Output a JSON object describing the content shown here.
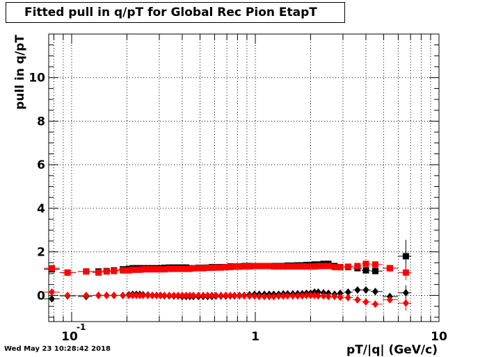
{
  "timestamp": "Wed May 23 10:28:42 2018",
  "chart_data": {
    "type": "scatter",
    "title": "Fitted pull in q/pT for Global Rec Pion EtapT",
    "xlabel": "pT/|q| (GeV/c)",
    "ylabel": "pull in q/pT",
    "xscale": "log",
    "xlim": [
      0.075,
      10
    ],
    "ylim": [
      -1.2,
      12
    ],
    "grid": true,
    "x_ticks": [
      {
        "value": 0.1,
        "label": "10",
        "exponent": "-1"
      },
      {
        "value": 1,
        "label": "1"
      },
      {
        "value": 10,
        "label": "10"
      }
    ],
    "y_ticks": [
      {
        "value": 0,
        "label": "0"
      },
      {
        "value": 2,
        "label": "2"
      },
      {
        "value": 4,
        "label": "4"
      },
      {
        "value": 6,
        "label": "6"
      },
      {
        "value": 8,
        "label": "8"
      },
      {
        "value": 10,
        "label": "10"
      }
    ],
    "x": [
      0.078,
      0.095,
      0.12,
      0.14,
      0.155,
      0.17,
      0.19,
      0.205,
      0.215,
      0.225,
      0.235,
      0.245,
      0.26,
      0.275,
      0.29,
      0.305,
      0.32,
      0.34,
      0.36,
      0.38,
      0.4,
      0.42,
      0.44,
      0.46,
      0.49,
      0.52,
      0.55,
      0.58,
      0.61,
      0.65,
      0.69,
      0.73,
      0.77,
      0.82,
      0.87,
      0.93,
      0.99,
      1.05,
      1.12,
      1.19,
      1.26,
      1.34,
      1.42,
      1.5,
      1.6,
      1.7,
      1.8,
      1.9,
      2.0,
      2.1,
      2.2,
      2.35,
      2.5,
      2.7,
      2.9,
      3.2,
      3.6,
      4.0,
      4.5,
      5.4,
      6.6
    ],
    "series": [
      {
        "name": "",
        "marker": "square",
        "color": "#000000",
        "values": [
          1.2,
          1.05,
          1.1,
          1.1,
          1.12,
          1.15,
          1.2,
          1.22,
          1.25,
          1.25,
          1.25,
          1.25,
          1.25,
          1.25,
          1.25,
          1.25,
          1.27,
          1.28,
          1.28,
          1.28,
          1.28,
          1.28,
          1.25,
          1.25,
          1.27,
          1.27,
          1.28,
          1.3,
          1.3,
          1.3,
          1.3,
          1.33,
          1.33,
          1.33,
          1.35,
          1.35,
          1.35,
          1.35,
          1.35,
          1.35,
          1.35,
          1.35,
          1.35,
          1.37,
          1.37,
          1.38,
          1.38,
          1.4,
          1.4,
          1.42,
          1.42,
          1.45,
          1.45,
          1.35,
          1.3,
          1.3,
          1.25,
          1.15,
          1.12,
          1.25,
          1.8
        ]
      },
      {
        "name": "",
        "marker": "square",
        "color": "#ff0000",
        "values": [
          1.25,
          1.05,
          1.1,
          1.05,
          1.1,
          1.12,
          1.15,
          1.15,
          1.18,
          1.18,
          1.18,
          1.2,
          1.2,
          1.2,
          1.2,
          1.2,
          1.2,
          1.22,
          1.22,
          1.22,
          1.22,
          1.22,
          1.22,
          1.25,
          1.25,
          1.25,
          1.27,
          1.27,
          1.28,
          1.28,
          1.3,
          1.3,
          1.32,
          1.32,
          1.33,
          1.33,
          1.35,
          1.35,
          1.35,
          1.35,
          1.33,
          1.33,
          1.33,
          1.33,
          1.33,
          1.33,
          1.33,
          1.33,
          1.33,
          1.33,
          1.35,
          1.35,
          1.35,
          1.3,
          1.3,
          1.32,
          1.35,
          1.45,
          1.42,
          1.25,
          1.05
        ]
      },
      {
        "name": "",
        "marker": "diamond",
        "color": "#000000",
        "values": [
          -0.15,
          -0.02,
          -0.05,
          0.0,
          0.0,
          0.0,
          0.0,
          0.03,
          0.05,
          0.05,
          0.05,
          0.03,
          0.02,
          0.0,
          0.0,
          0.0,
          -0.02,
          -0.02,
          -0.03,
          -0.03,
          -0.05,
          -0.05,
          -0.05,
          -0.05,
          -0.05,
          -0.05,
          -0.05,
          -0.05,
          -0.03,
          -0.03,
          -0.03,
          -0.02,
          -0.02,
          0.0,
          0.0,
          0.03,
          0.05,
          0.05,
          0.05,
          0.05,
          0.05,
          0.05,
          0.07,
          0.07,
          0.07,
          0.08,
          0.08,
          0.1,
          0.1,
          0.15,
          0.15,
          0.12,
          0.1,
          0.05,
          0.1,
          0.15,
          0.25,
          0.25,
          0.18,
          -0.05,
          0.12
        ]
      },
      {
        "name": "",
        "marker": "diamond",
        "color": "#ff0000",
        "values": [
          0.15,
          0.0,
          0.0,
          0.0,
          0.0,
          0.0,
          0.0,
          0.0,
          0.0,
          0.0,
          0.0,
          0.0,
          0.0,
          0.0,
          0.0,
          0.0,
          0.0,
          0.0,
          0.0,
          0.0,
          0.0,
          0.0,
          0.0,
          0.0,
          0.0,
          0.0,
          0.0,
          0.0,
          0.0,
          0.0,
          0.0,
          0.0,
          0.0,
          -0.02,
          -0.02,
          -0.03,
          -0.03,
          -0.05,
          -0.05,
          -0.05,
          -0.05,
          -0.03,
          -0.03,
          -0.02,
          -0.02,
          -0.02,
          -0.02,
          0.0,
          0.0,
          0.0,
          -0.02,
          -0.02,
          -0.05,
          -0.05,
          -0.08,
          -0.1,
          -0.2,
          -0.3,
          -0.4,
          -0.2,
          -0.35
        ]
      }
    ]
  }
}
